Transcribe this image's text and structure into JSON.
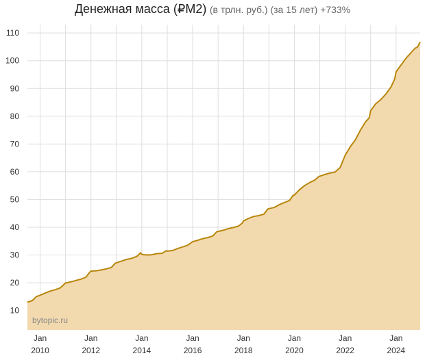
{
  "chart_data": {
    "type": "area",
    "title": "Денежная масса (₽M2)",
    "subtitle": "(в трлн. руб.) (за 15 лет) +733%",
    "watermark": "bytopic.ru",
    "colors": {
      "line": "#b8860b",
      "fill": "#f2d9ae",
      "grid": "#dddddd"
    },
    "grid": true,
    "legend": "none",
    "ylim": [
      3,
      113
    ],
    "yticks": [
      10,
      20,
      30,
      40,
      50,
      60,
      70,
      80,
      90,
      100,
      110
    ],
    "xlim": [
      2009.5,
      2024.95
    ],
    "xticks": [
      {
        "x": 2010,
        "top": "Jan",
        "bottom": "2010"
      },
      {
        "x": 2011,
        "top": "",
        "bottom": ""
      },
      {
        "x": 2012,
        "top": "Jan",
        "bottom": "2012"
      },
      {
        "x": 2013,
        "top": "",
        "bottom": ""
      },
      {
        "x": 2014,
        "top": "Jan",
        "bottom": "2014"
      },
      {
        "x": 2015,
        "top": "",
        "bottom": ""
      },
      {
        "x": 2016,
        "top": "Jan",
        "bottom": "2016"
      },
      {
        "x": 2017,
        "top": "",
        "bottom": ""
      },
      {
        "x": 2018,
        "top": "Jan",
        "bottom": "2018"
      },
      {
        "x": 2019,
        "top": "",
        "bottom": ""
      },
      {
        "x": 2020,
        "top": "Jan",
        "bottom": "2020"
      },
      {
        "x": 2021,
        "top": "",
        "bottom": ""
      },
      {
        "x": 2022,
        "top": "Jan",
        "bottom": "2022"
      },
      {
        "x": 2023,
        "top": "",
        "bottom": ""
      },
      {
        "x": 2024,
        "top": "Jan",
        "bottom": "2024"
      }
    ],
    "series": [
      {
        "x": [
          2009.5,
          2009.7,
          2009.85,
          2010.0,
          2010.2,
          2010.4,
          2010.6,
          2010.8,
          2010.95,
          2011.0,
          2011.2,
          2011.4,
          2011.6,
          2011.8,
          2011.95,
          2012.0,
          2012.2,
          2012.4,
          2012.6,
          2012.8,
          2012.95,
          2013.0,
          2013.2,
          2013.4,
          2013.6,
          2013.8,
          2013.95,
          2014.0,
          2014.2,
          2014.4,
          2014.6,
          2014.8,
          2014.95,
          2015.0,
          2015.2,
          2015.4,
          2015.6,
          2015.8,
          2015.95,
          2016.0,
          2016.2,
          2016.4,
          2016.6,
          2016.8,
          2016.95,
          2017.0,
          2017.2,
          2017.4,
          2017.6,
          2017.8,
          2017.95,
          2018.0,
          2018.2,
          2018.4,
          2018.6,
          2018.8,
          2018.95,
          2019.0,
          2019.2,
          2019.4,
          2019.6,
          2019.8,
          2019.95,
          2020.0,
          2020.2,
          2020.4,
          2020.6,
          2020.8,
          2020.95,
          2021.0,
          2021.2,
          2021.4,
          2021.6,
          2021.8,
          2021.95,
          2022.0,
          2022.1,
          2022.2,
          2022.4,
          2022.6,
          2022.8,
          2022.95,
          2023.0,
          2023.2,
          2023.4,
          2023.6,
          2023.8,
          2023.95,
          2024.0,
          2024.2,
          2024.4,
          2024.6,
          2024.75,
          2024.85,
          2024.95
        ],
        "values": [
          13.0,
          13.6,
          15.0,
          15.5,
          16.3,
          17.0,
          17.5,
          18.2,
          19.5,
          19.9,
          20.3,
          20.8,
          21.3,
          22.0,
          23.8,
          24.2,
          24.3,
          24.6,
          25.0,
          25.5,
          27.0,
          27.2,
          27.8,
          28.4,
          28.8,
          29.5,
          30.8,
          30.2,
          30.0,
          30.1,
          30.5,
          30.6,
          31.5,
          31.4,
          31.6,
          32.3,
          32.9,
          33.5,
          34.5,
          34.8,
          35.3,
          35.9,
          36.3,
          36.9,
          38.4,
          38.5,
          38.9,
          39.5,
          39.9,
          40.4,
          41.5,
          42.3,
          43.2,
          43.9,
          44.2,
          44.7,
          46.5,
          46.7,
          47.1,
          48.1,
          48.9,
          49.6,
          51.5,
          51.6,
          53.5,
          55.0,
          56.1,
          57.0,
          58.2,
          58.4,
          59.0,
          59.5,
          59.9,
          61.5,
          64.8,
          66.0,
          67.5,
          69.0,
          71.5,
          75.0,
          78.0,
          79.5,
          82.0,
          84.5,
          86.0,
          88.0,
          90.5,
          93.5,
          96.0,
          98.5,
          101.0,
          103.0,
          104.5,
          105.0,
          106.8
        ]
      }
    ]
  }
}
